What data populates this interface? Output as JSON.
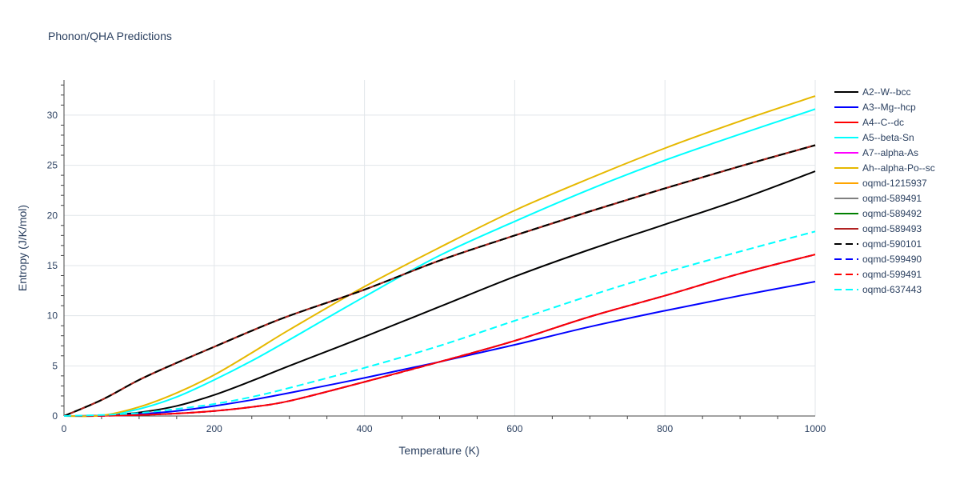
{
  "chart_data": {
    "type": "line",
    "title": "Phonon/QHA Predictions",
    "xlabel": "Temperature (K)",
    "ylabel": "Entropy (J/K/mol)",
    "xlim": [
      0,
      1000
    ],
    "ylim": [
      0,
      33.5
    ],
    "xticks": [
      0,
      200,
      400,
      600,
      800,
      1000
    ],
    "yticks": [
      0,
      5,
      10,
      15,
      20,
      25,
      30
    ],
    "grid": true,
    "legend_position": "right",
    "series": [
      {
        "name": "A2--W--bcc",
        "color": "#000000",
        "dash": "solid",
        "x": [
          0,
          50,
          100,
          150,
          200,
          250,
          300,
          400,
          500,
          600,
          700,
          800,
          900,
          1000
        ],
        "y": [
          0,
          0.05,
          0.35,
          1.0,
          2.1,
          3.5,
          5.0,
          7.9,
          10.9,
          13.9,
          16.6,
          19.1,
          21.6,
          24.4
        ]
      },
      {
        "name": "A3--Mg--hcp",
        "color": "#0000ff",
        "dash": "solid",
        "x": [
          0,
          50,
          100,
          150,
          200,
          250,
          300,
          400,
          500,
          600,
          700,
          800,
          900,
          1000
        ],
        "y": [
          0,
          0.03,
          0.2,
          0.5,
          1.0,
          1.6,
          2.3,
          3.8,
          5.4,
          7.1,
          8.9,
          10.5,
          12.0,
          13.4
        ]
      },
      {
        "name": "A4--C--dc",
        "color": "#ff0000",
        "dash": "solid",
        "x": [
          0,
          50,
          100,
          150,
          200,
          250,
          300,
          400,
          500,
          600,
          700,
          800,
          900,
          1000
        ],
        "y": [
          0,
          0.02,
          0.1,
          0.25,
          0.5,
          0.9,
          1.5,
          3.4,
          5.4,
          7.5,
          9.9,
          12.0,
          14.2,
          16.1
        ]
      },
      {
        "name": "A5--beta-Sn",
        "color": "#00ffff",
        "dash": "solid",
        "x": [
          0,
          50,
          100,
          150,
          200,
          250,
          300,
          400,
          500,
          600,
          700,
          800,
          900,
          1000
        ],
        "y": [
          0,
          0.05,
          0.7,
          1.9,
          3.6,
          5.5,
          7.6,
          11.9,
          16.0,
          19.4,
          22.6,
          25.5,
          28.1,
          30.6
        ]
      },
      {
        "name": "A7--alpha-As",
        "color": "#ff00ff",
        "dash": "solid",
        "x": [
          0,
          50,
          100,
          150,
          200,
          250,
          300,
          400,
          500,
          600,
          700,
          800,
          900,
          1000
        ],
        "y": [
          0,
          1.6,
          3.6,
          5.3,
          6.9,
          8.5,
          10.0,
          12.6,
          15.5,
          18.0,
          20.4,
          22.7,
          24.9,
          27.0
        ]
      },
      {
        "name": "Ah--alpha-Po--sc",
        "color": "#e6b800",
        "dash": "solid",
        "x": [
          0,
          50,
          100,
          150,
          200,
          250,
          300,
          400,
          500,
          600,
          700,
          800,
          900,
          1000
        ],
        "y": [
          0,
          0.05,
          0.9,
          2.3,
          4.1,
          6.3,
          8.6,
          12.9,
          16.8,
          20.5,
          23.7,
          26.7,
          29.4,
          31.9
        ]
      },
      {
        "name": "oqmd-1215937",
        "color": "#ffa500",
        "dash": "solid",
        "x": [
          0,
          50,
          100,
          150,
          200,
          250,
          300,
          400,
          500,
          600,
          700,
          800,
          900,
          1000
        ],
        "y": [
          0,
          1.6,
          3.6,
          5.3,
          6.9,
          8.5,
          10.0,
          12.6,
          15.5,
          18.0,
          20.4,
          22.7,
          24.9,
          27.0
        ]
      },
      {
        "name": "oqmd-589491",
        "color": "#808080",
        "dash": "solid",
        "x": [
          0,
          50,
          100,
          150,
          200,
          250,
          300,
          400,
          500,
          600,
          700,
          800,
          900,
          1000
        ],
        "y": [
          0,
          1.6,
          3.6,
          5.3,
          6.9,
          8.5,
          10.0,
          12.6,
          15.5,
          18.0,
          20.4,
          22.7,
          24.9,
          27.0
        ]
      },
      {
        "name": "oqmd-589492",
        "color": "#008000",
        "dash": "solid",
        "x": [
          0,
          50,
          100,
          150,
          200,
          250,
          300,
          400,
          500,
          600,
          700,
          800,
          900,
          1000
        ],
        "y": [
          0,
          1.6,
          3.6,
          5.3,
          6.9,
          8.5,
          10.0,
          12.6,
          15.5,
          18.0,
          20.4,
          22.7,
          24.9,
          27.0
        ]
      },
      {
        "name": "oqmd-589493",
        "color": "#b22222",
        "dash": "solid",
        "x": [
          0,
          50,
          100,
          150,
          200,
          250,
          300,
          400,
          500,
          600,
          700,
          800,
          900,
          1000
        ],
        "y": [
          0,
          1.6,
          3.6,
          5.3,
          6.9,
          8.5,
          10.0,
          12.6,
          15.5,
          18.0,
          20.4,
          22.7,
          24.9,
          27.0
        ]
      },
      {
        "name": "oqmd-590101",
        "color": "#000000",
        "dash": "dash",
        "x": [
          0,
          50,
          100,
          150,
          200,
          250,
          300,
          400,
          500,
          600,
          700,
          800,
          900,
          1000
        ],
        "y": [
          0,
          1.6,
          3.6,
          5.3,
          6.9,
          8.5,
          10.0,
          12.6,
          15.5,
          18.0,
          20.4,
          22.7,
          24.9,
          27.0
        ]
      },
      {
        "name": "oqmd-599490",
        "color": "#0000ff",
        "dash": "dash",
        "x": [
          0,
          50,
          100,
          150,
          200,
          250,
          300,
          400,
          500,
          600,
          700,
          800,
          900,
          1000
        ],
        "y": [
          0,
          0.02,
          0.1,
          0.25,
          0.5,
          0.9,
          1.5,
          3.4,
          5.4,
          7.5,
          9.9,
          12.0,
          14.2,
          16.1
        ]
      },
      {
        "name": "oqmd-599491",
        "color": "#ff0000",
        "dash": "dash",
        "x": [
          0,
          50,
          100,
          150,
          200,
          250,
          300,
          400,
          500,
          600,
          700,
          800,
          900,
          1000
        ],
        "y": [
          0,
          0.02,
          0.1,
          0.25,
          0.5,
          0.9,
          1.5,
          3.4,
          5.4,
          7.5,
          9.9,
          12.0,
          14.2,
          16.1
        ]
      },
      {
        "name": "oqmd-637443",
        "color": "#00ffff",
        "dash": "dash",
        "x": [
          0,
          50,
          100,
          150,
          200,
          250,
          300,
          400,
          500,
          600,
          700,
          800,
          900,
          1000
        ],
        "y": [
          0,
          0.1,
          0.3,
          0.7,
          1.2,
          1.9,
          2.8,
          4.8,
          7.0,
          9.5,
          12.0,
          14.3,
          16.4,
          18.4
        ]
      }
    ]
  }
}
